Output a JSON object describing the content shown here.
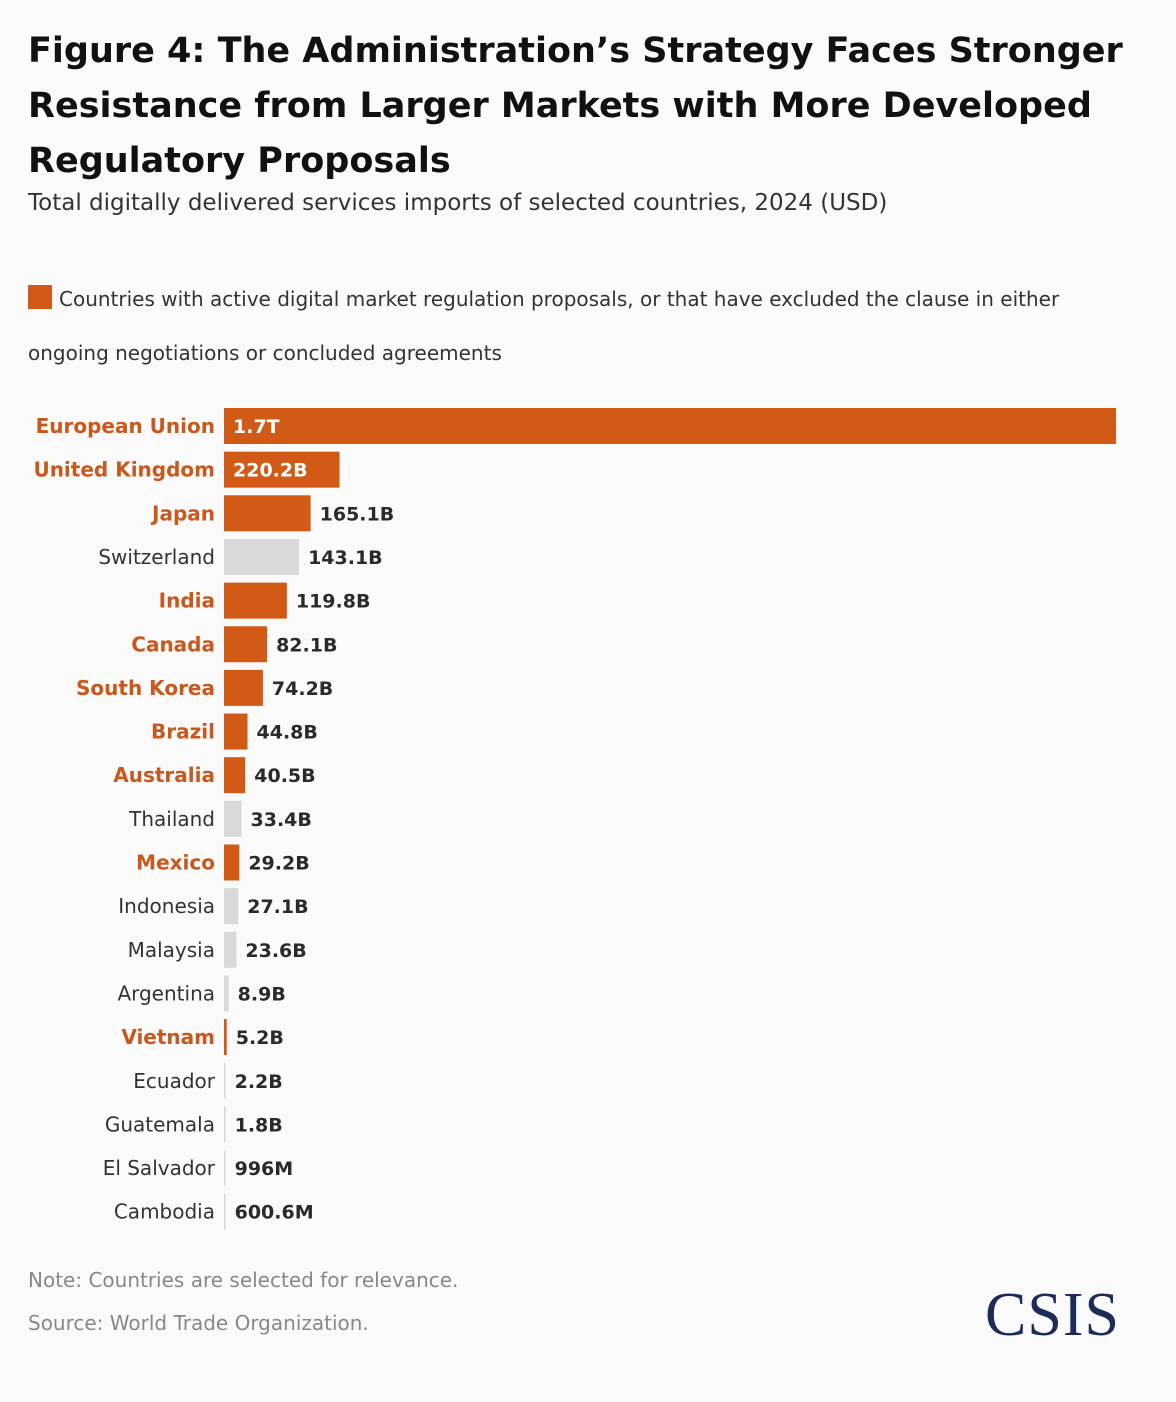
{
  "header": {
    "title": "Figure 4: The Administration’s Strategy Faces Stronger Resistance from Larger Markets with More Developed Regulatory Proposals",
    "subtitle": "Total digitally delivered services imports of selected countries, 2024 (USD)"
  },
  "legend": {
    "label": "Countries with active digital market regulation proposals, or that have excluded the clause in either ongoing negotiations or concluded agreements"
  },
  "colors": {
    "highlight": "#d05a16",
    "other": "#d9d9d9",
    "highlight_label": "#c9581d",
    "other_label": "#333333",
    "value_label": "#2a2a2a",
    "value_label_inside": "#ffffff"
  },
  "chart_data": {
    "type": "bar",
    "orientation": "horizontal",
    "title": "Figure 4: The Administration’s Strategy Faces Stronger Resistance from Larger Markets with More Developed Regulatory Proposals",
    "subtitle": "Total digitally delivered services imports of selected countries, 2024 (USD)",
    "unit": "USD (billions)",
    "categories": [
      "European Union",
      "United Kingdom",
      "Japan",
      "Switzerland",
      "India",
      "Canada",
      "South Korea",
      "Brazil",
      "Australia",
      "Thailand",
      "Mexico",
      "Indonesia",
      "Malaysia",
      "Argentina",
      "Vietnam",
      "Ecuador",
      "Guatemala",
      "El Salvador",
      "Cambodia"
    ],
    "values": [
      1700,
      220.2,
      165.1,
      143.1,
      119.8,
      82.1,
      74.2,
      44.8,
      40.5,
      33.4,
      29.2,
      27.1,
      23.6,
      8.9,
      5.2,
      2.2,
      1.8,
      0.996,
      0.6006
    ],
    "value_labels": [
      "1.7T",
      "220.2B",
      "165.1B",
      "143.1B",
      "119.8B",
      "82.1B",
      "74.2B",
      "44.8B",
      "40.5B",
      "33.4B",
      "29.2B",
      "27.1B",
      "23.6B",
      "8.9B",
      "5.2B",
      "2.2B",
      "1.8B",
      "996M",
      "600.6M"
    ],
    "highlighted": [
      true,
      true,
      true,
      false,
      true,
      true,
      true,
      true,
      true,
      false,
      true,
      false,
      false,
      false,
      true,
      false,
      false,
      false,
      false
    ],
    "xlim": [
      0,
      1700
    ],
    "legend": [
      "Countries with active digital market regulation proposals, or that have excluded the clause in either ongoing negotiations or concluded agreements"
    ],
    "grid": false
  },
  "footer": {
    "note": "Note: Countries are selected for relevance.",
    "source": "Source: World Trade Organization.",
    "logo": "CSIS"
  }
}
